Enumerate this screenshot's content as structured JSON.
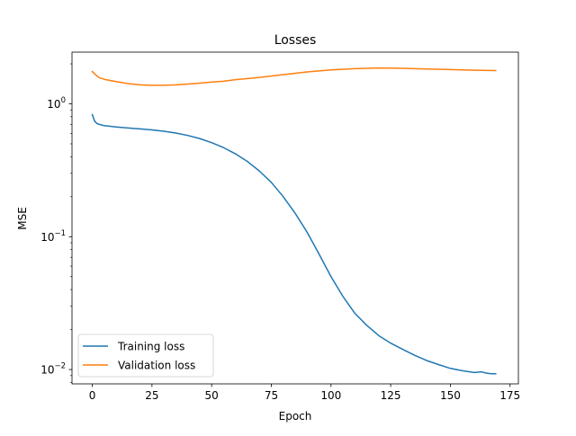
{
  "chart_data": {
    "type": "line",
    "title": "Losses",
    "xlabel": "Epoch",
    "ylabel": "MSE",
    "xlim": [
      -8.5,
      178.5
    ],
    "ylim": [
      0.0078,
      2.45
    ],
    "yscale": "log",
    "grid": false,
    "legend_position": "lower-left",
    "x_ticks": [
      0,
      25,
      50,
      75,
      100,
      125,
      150,
      175
    ],
    "x_tick_labels": [
      "0",
      "25",
      "50",
      "75",
      "100",
      "125",
      "150",
      "175"
    ],
    "y_ticks": [
      0.01,
      0.1,
      1
    ],
    "y_tick_labels": [
      "10",
      "10",
      "10"
    ],
    "y_tick_exponents": [
      "−2",
      "−1",
      "0"
    ],
    "series": [
      {
        "name": "Training loss",
        "color": "#1f77b4",
        "x": [
          0,
          1,
          2,
          3,
          5,
          10,
          15,
          20,
          25,
          30,
          35,
          40,
          45,
          50,
          55,
          60,
          65,
          70,
          75,
          80,
          85,
          90,
          95,
          100,
          105,
          110,
          115,
          120,
          125,
          130,
          135,
          140,
          145,
          150,
          155,
          160,
          163,
          165,
          167,
          169
        ],
        "y": [
          0.83,
          0.74,
          0.71,
          0.7,
          0.685,
          0.67,
          0.658,
          0.648,
          0.637,
          0.622,
          0.603,
          0.578,
          0.548,
          0.51,
          0.468,
          0.42,
          0.368,
          0.312,
          0.256,
          0.2,
          0.15,
          0.108,
          0.074,
          0.05,
          0.0355,
          0.0265,
          0.0215,
          0.018,
          0.0158,
          0.0142,
          0.0128,
          0.0117,
          0.0109,
          0.0102,
          0.0098,
          0.0095,
          0.0096,
          0.0094,
          0.0093,
          0.0093
        ]
      },
      {
        "name": "Validation loss",
        "color": "#ff7f0e",
        "x": [
          0,
          1,
          2,
          3,
          5,
          10,
          15,
          20,
          25,
          30,
          35,
          40,
          45,
          50,
          55,
          60,
          70,
          80,
          90,
          100,
          110,
          120,
          130,
          140,
          150,
          160,
          169
        ],
        "y": [
          1.75,
          1.68,
          1.62,
          1.57,
          1.53,
          1.47,
          1.42,
          1.39,
          1.38,
          1.38,
          1.39,
          1.41,
          1.43,
          1.46,
          1.48,
          1.52,
          1.58,
          1.66,
          1.74,
          1.8,
          1.84,
          1.86,
          1.85,
          1.83,
          1.81,
          1.79,
          1.78
        ]
      }
    ]
  }
}
